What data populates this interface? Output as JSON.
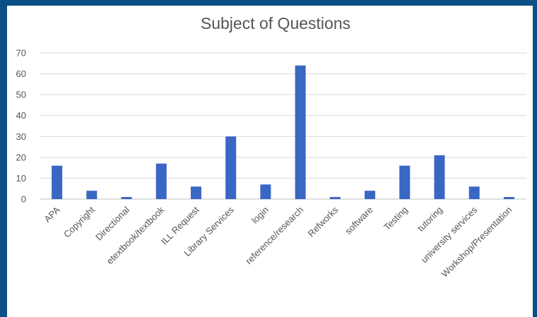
{
  "chart_data": {
    "type": "bar",
    "title": "Subject of Questions",
    "xlabel": "",
    "ylabel": "",
    "ylim": [
      0,
      70
    ],
    "yticks": [
      0,
      10,
      20,
      30,
      40,
      50,
      60,
      70
    ],
    "grid": true,
    "legend": "none",
    "categories": [
      "APA",
      "Copyright",
      "Directional",
      "etextbook/textbook",
      "ILL Request",
      "Library Services",
      "login",
      "reference/research",
      "Refworks",
      "software",
      "Testing",
      "tutoring",
      "university services",
      "Workshop/Presentation"
    ],
    "values": [
      16,
      4,
      1,
      17,
      6,
      30,
      7,
      64,
      1,
      4,
      16,
      21,
      6,
      1
    ],
    "bar_color": "#3a66c4",
    "frame_color": "#0b4f86"
  }
}
